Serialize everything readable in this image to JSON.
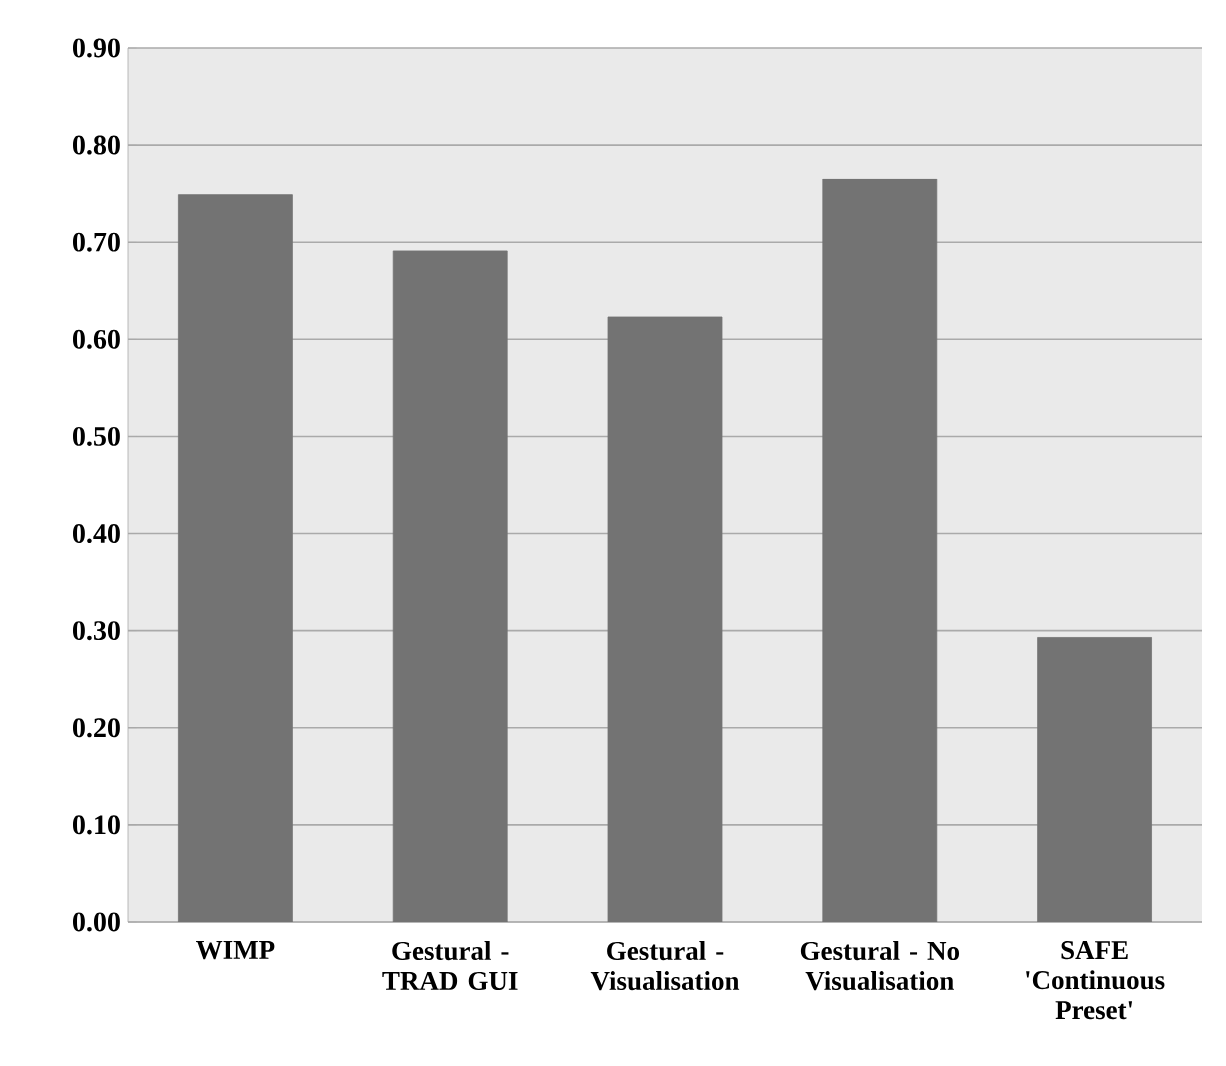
{
  "chart_data": {
    "type": "bar",
    "categories": [
      "WIMP",
      "Gestural - TRAD GUI",
      "Gestural - Visualisation",
      "Gestural - No Visualisation",
      "SAFE 'Continuous Preset'"
    ],
    "values": [
      0.749,
      0.691,
      0.623,
      0.765,
      0.293
    ],
    "color": "#737373",
    "ylim": [
      0,
      0.9
    ],
    "yticks": [
      {
        "value": 0,
        "label": "0.00"
      },
      {
        "value": 0.1,
        "label": "0.10"
      },
      {
        "value": 0.2,
        "label": "0.20"
      },
      {
        "value": 0.3,
        "label": "0.30"
      },
      {
        "value": 0.4,
        "label": "0.40"
      },
      {
        "value": 0.5,
        "label": "0.50"
      },
      {
        "value": 0.6,
        "label": "0.60"
      },
      {
        "value": 0.7,
        "label": "0.70"
      },
      {
        "value": 0.8,
        "label": "0.80"
      },
      {
        "value": 0.9,
        "label": "0.90"
      }
    ],
    "grid": "y"
  }
}
